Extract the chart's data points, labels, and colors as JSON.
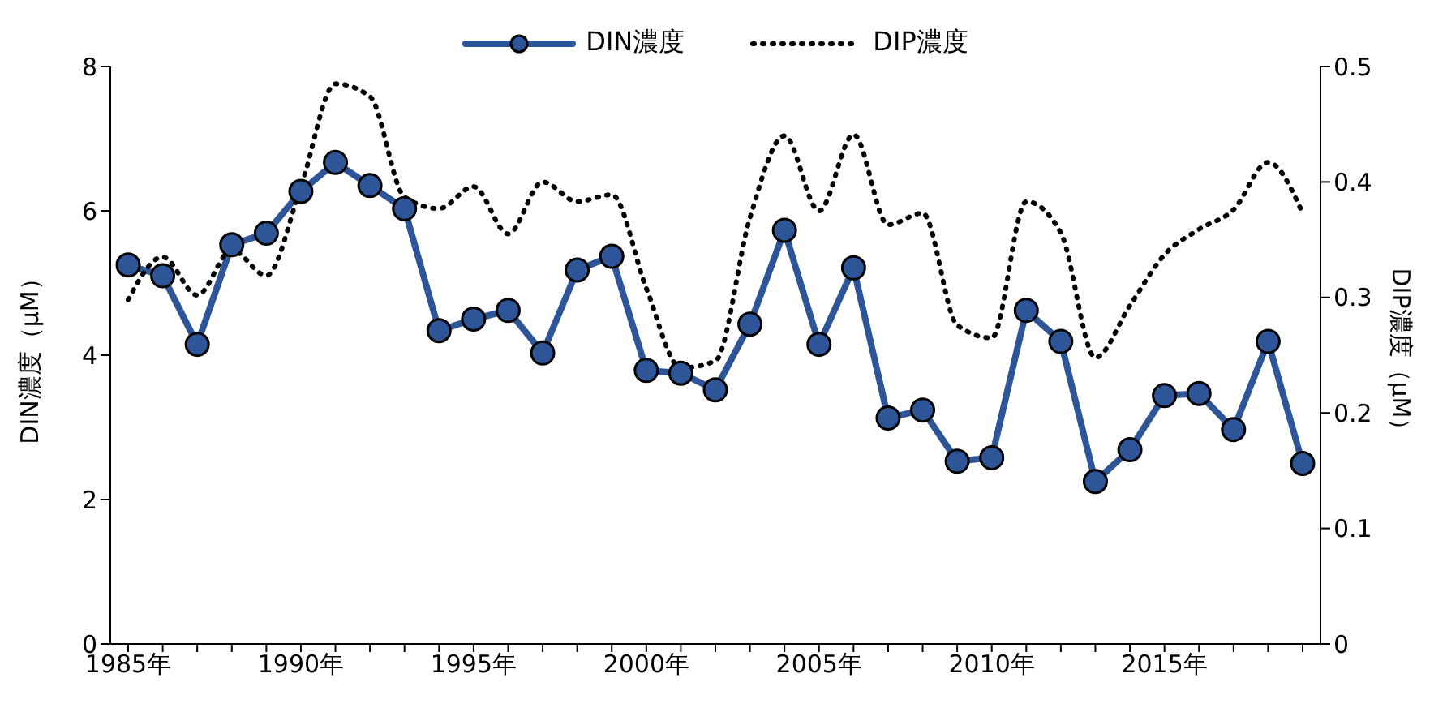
{
  "chart_data": {
    "type": "line",
    "categories": [
      "1985年",
      null,
      null,
      null,
      null,
      "1990年",
      null,
      null,
      null,
      null,
      "1995年",
      null,
      null,
      null,
      null,
      "2000年",
      null,
      null,
      null,
      null,
      "2005年",
      null,
      null,
      null,
      null,
      "2010年",
      null,
      null,
      null,
      null,
      "2015年",
      null,
      null,
      null,
      null
    ],
    "ylabel": "DIN濃度（μM）",
    "y2label": "DIP濃度（μM）",
    "ylim": [
      0,
      8
    ],
    "yticks": [
      0,
      2,
      4,
      6,
      8
    ],
    "y2lim": [
      0,
      0.5
    ],
    "y2ticks": [
      0,
      0.1,
      0.2,
      0.3,
      0.4,
      0.5
    ],
    "grid": false,
    "legend": "top",
    "series": [
      {
        "name": "DIN濃度",
        "color": "#2e5597",
        "marker": "circle",
        "line_style": "solid",
        "values": [
          5.25,
          5.1,
          4.15,
          5.53,
          5.69,
          6.27,
          6.67,
          6.35,
          6.03,
          4.34,
          4.5,
          4.62,
          4.03,
          5.18,
          5.37,
          3.79,
          3.75,
          3.52,
          4.43,
          5.73,
          4.15,
          5.21,
          3.13,
          3.24,
          2.53,
          2.58,
          4.62,
          4.19,
          2.25,
          2.69,
          3.44,
          3.47,
          2.97,
          4.19,
          2.5
        ]
      },
      {
        "name": "DIP濃度",
        "color": "#000000",
        "marker": "none",
        "line_style": "dotted",
        "axis": "y2",
        "values": [
          0.298,
          0.335,
          0.302,
          0.341,
          0.319,
          0.396,
          0.485,
          0.474,
          0.387,
          0.377,
          0.396,
          0.355,
          0.4,
          0.383,
          0.389,
          0.308,
          0.239,
          0.245,
          0.369,
          0.44,
          0.375,
          0.441,
          0.363,
          0.373,
          0.276,
          0.265,
          0.383,
          0.356,
          0.248,
          0.293,
          0.337,
          0.359,
          0.376,
          0.417,
          0.373
        ]
      }
    ]
  }
}
